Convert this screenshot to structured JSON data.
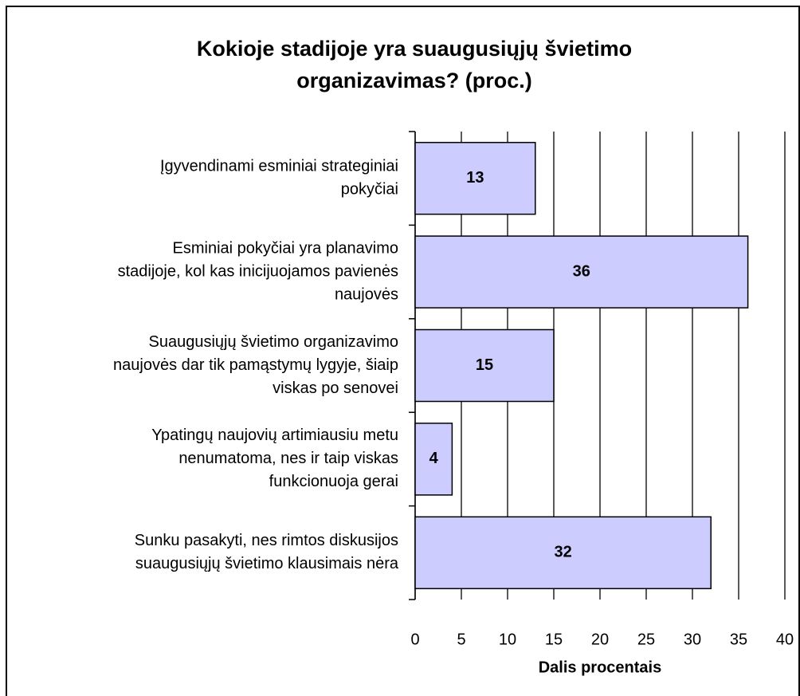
{
  "chart_data": {
    "type": "bar",
    "orientation": "horizontal",
    "title": [
      "Kokioje stadijoje yra suaugusiųjų švietimo",
      "organizavimas? (proc.)"
    ],
    "categories": [
      [
        "Įgyvendinami esminiai strateginiai",
        "pokyčiai"
      ],
      [
        "Esminiai pokyčiai yra planavimo",
        "stadijoje, kol kas inicijuojamos pavienės",
        "naujovės"
      ],
      [
        "Suaugusiųjų švietimo organizavimo",
        "naujovės dar tik pamąstymų lygyje, šiaip",
        "viskas po senovei"
      ],
      [
        "Ypatingų naujovių artimiausiu metu",
        "nenumatoma, nes ir taip viskas",
        "funkcionuoja gerai"
      ],
      [
        "Sunku pasakyti, nes rimtos diskusijos",
        "suaugusiųjų švietimo klausimais nėra"
      ]
    ],
    "values": [
      13,
      36,
      15,
      4,
      32
    ],
    "color": "#ccccff",
    "xlabel": "Dalis procentais",
    "xlim": [
      0,
      40
    ],
    "xticks": [
      0,
      5,
      10,
      15,
      20,
      25,
      30,
      35,
      40
    ],
    "grid": true
  }
}
